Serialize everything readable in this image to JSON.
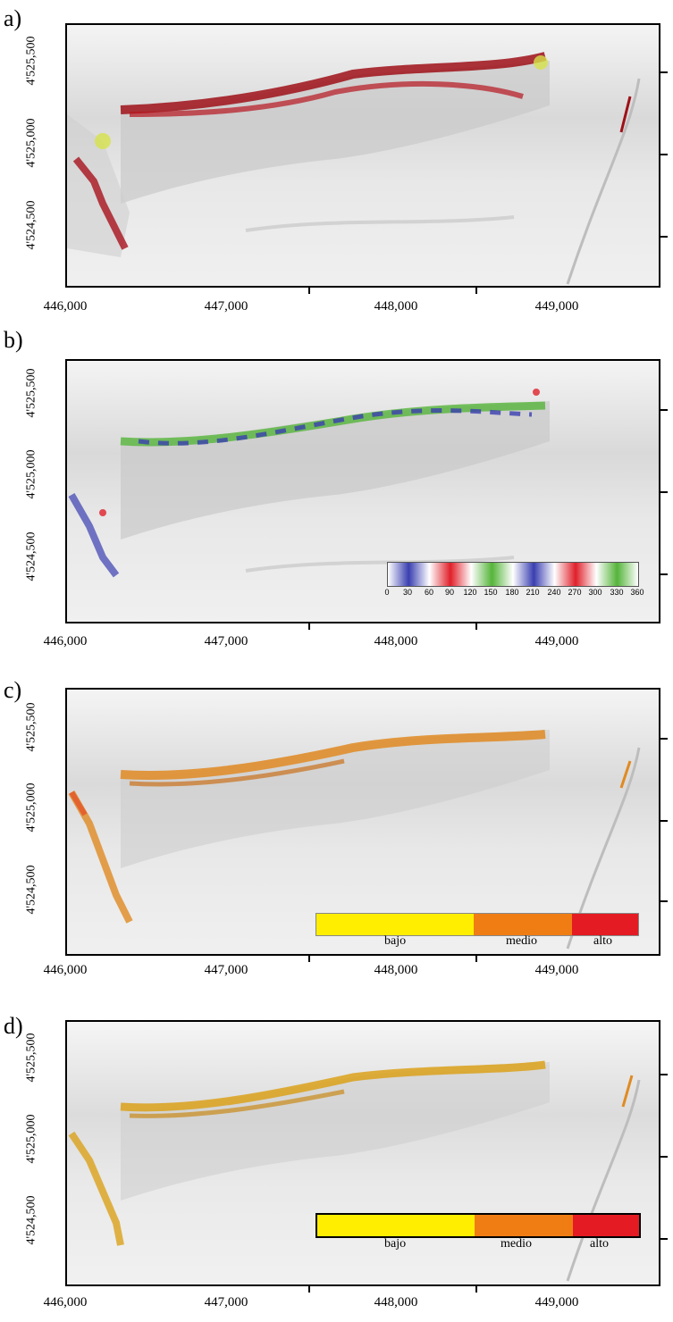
{
  "panels": [
    {
      "label": "a)"
    },
    {
      "label": "b)"
    },
    {
      "label": "c)"
    },
    {
      "label": "d)"
    }
  ],
  "x_ticks": [
    "446,000",
    "447,000",
    "448,000",
    "449,000"
  ],
  "y_ticks": [
    "4'525,500",
    "4'525,000",
    "4'524,500"
  ],
  "aspect_legend": {
    "ticks": [
      "0",
      "30",
      "60",
      "90",
      "120",
      "150",
      "180",
      "210",
      "240",
      "270",
      "300",
      "330",
      "360"
    ],
    "colors": {
      "blue": "#3a3fb0",
      "red": "#e0202a",
      "green": "#55b43a"
    }
  },
  "risk_legend": {
    "labels": [
      "bajo",
      "medio",
      "alto"
    ],
    "colors": {
      "bajo": "#ffee00",
      "medio": "#f07d14",
      "alto": "#e41b23"
    }
  },
  "colors": {
    "panel_a_overlay": "#a8121b",
    "panel_a_secondary": "#d6e24a",
    "panel_c_overlay": "#e08a22",
    "panel_d_overlay": "#dba11a"
  }
}
